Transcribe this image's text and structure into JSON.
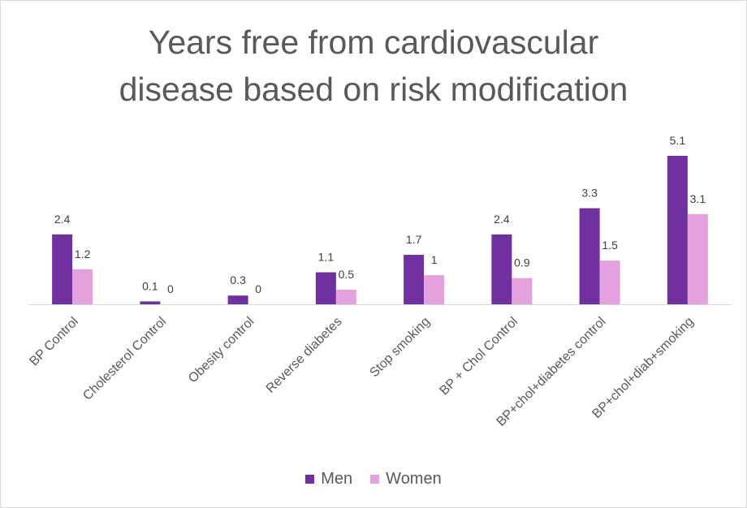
{
  "chart_data": {
    "type": "bar",
    "title_lines": [
      "Years free from cardiovascular",
      "disease based on risk modification"
    ],
    "categories": [
      "BP Control",
      "Cholesterol Control",
      "Obesity control",
      "Reverse diabetes",
      "Stop smoking",
      "BP + Chol Control",
      "BP+chol+diabetes control",
      "BP+chol+diab+smoking"
    ],
    "series": [
      {
        "name": "Men",
        "color": "#7030A0",
        "values": [
          2.4,
          0.1,
          0.3,
          1.1,
          1.7,
          2.4,
          3.3,
          5.1
        ]
      },
      {
        "name": "Women",
        "color": "#E4A1E0",
        "values": [
          1.2,
          0,
          0,
          0.5,
          1,
          0.9,
          1.5,
          3.1
        ]
      }
    ],
    "data_labels": true,
    "ylim": [
      0,
      5.1
    ],
    "grid": false,
    "legend": "bottom"
  }
}
